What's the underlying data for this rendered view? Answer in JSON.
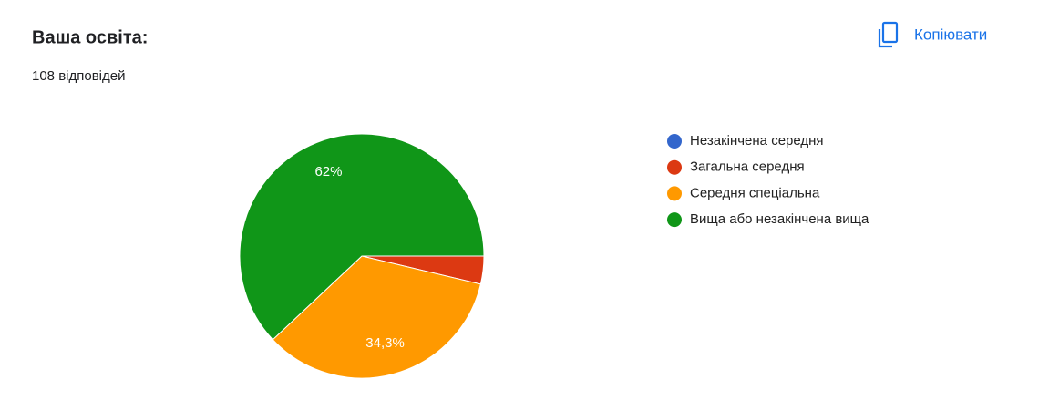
{
  "copy_button": "Копіювати",
  "chart_data": {
    "type": "pie",
    "title": "Ваша освіта:",
    "subtitle": "108 відповідей",
    "categories": [
      "Незакінчена середня",
      "Загальна середня",
      "Середня спеціальна",
      "Вища або незакінчена вища"
    ],
    "values": [
      0,
      3.7,
      34.3,
      62
    ],
    "value_labels": [
      null,
      null,
      "34,3%",
      "62%"
    ],
    "colors": [
      "#3366cc",
      "#dc3912",
      "#ff9900",
      "#109618"
    ],
    "legend": "right"
  }
}
